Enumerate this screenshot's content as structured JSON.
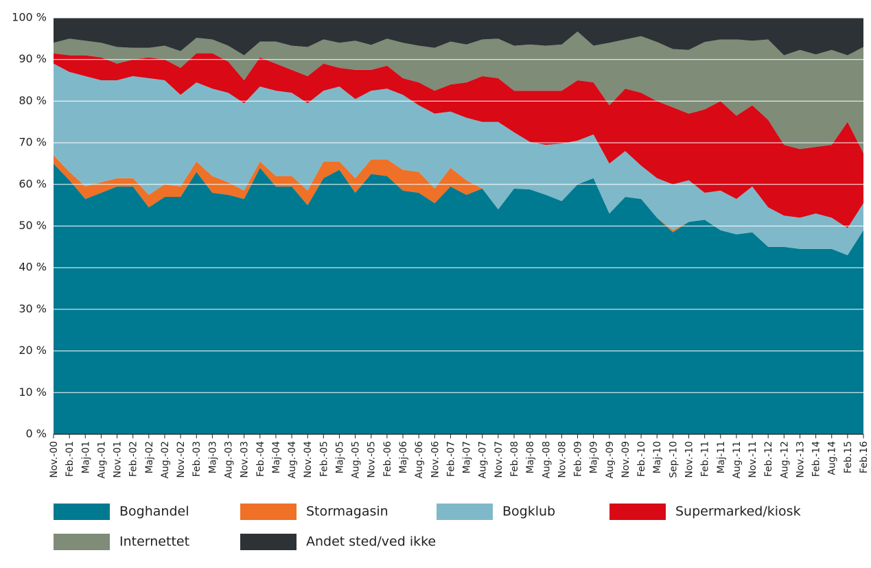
{
  "chart_data": {
    "type": "stacked-area",
    "categories": [
      "Nov.-00",
      "Feb.-01",
      "Maj-01",
      "Aug.-01",
      "Nov.-01",
      "Feb.-02",
      "Maj-02",
      "Aug.-02",
      "Nov.-02",
      "Feb.-03",
      "Maj-03",
      "Aug.-03",
      "Nov.-03",
      "Feb.-04",
      "Maj-04",
      "Aug.-04",
      "Nov.-04",
      "Feb.-05",
      "Maj-05",
      "Aug.-05",
      "Nov.-05",
      "Feb.-06",
      "Maj-06",
      "Aug.-06",
      "Nov.-06",
      "Feb.-07",
      "Maj-07",
      "Aug.-07",
      "Nov.-07",
      "Feb.-08",
      "Maj-08",
      "Aug.-08",
      "Nov.-08",
      "Feb.-09",
      "Maj-09",
      "Aug.-09",
      "Nov.-09",
      "Feb.-10",
      "Maj-10",
      "Sep.-10",
      "Nov.-10",
      "Feb.-11",
      "Maj-11",
      "Aug.-11",
      "Nov.-11",
      "Feb.-12",
      "Aug.-12",
      "Nov.-13",
      "Feb.-14",
      "Aug.14",
      "Feb.15",
      "Feb.16"
    ],
    "series": [
      {
        "name": "Boghandel",
        "color": "#007a91",
        "values": [
          65,
          61,
          56.5,
          58,
          59.5,
          59.5,
          54.5,
          57,
          57,
          63,
          58,
          57.5,
          56.5,
          64,
          59.5,
          59.5,
          55,
          61.5,
          63.5,
          58,
          62.5,
          62,
          58.5,
          58,
          55.5,
          59.5,
          57.5,
          59,
          54,
          59,
          58.8,
          57.5,
          56,
          60,
          61.5,
          53,
          57,
          56.5,
          52,
          48.5,
          51,
          51.5,
          49,
          48,
          48.5,
          45,
          45,
          44.5,
          44.5,
          44.5,
          43,
          49
        ]
      },
      {
        "name": "Stormagasin",
        "color": "#ee7127",
        "values": [
          2,
          2,
          3,
          2.5,
          2,
          2,
          3,
          3,
          2.5,
          2.5,
          4,
          3,
          2,
          1.5,
          2.5,
          2.5,
          3.5,
          4,
          2,
          3.5,
          3.5,
          4,
          5,
          5,
          3.5,
          4.5,
          3.5,
          0,
          0,
          0,
          0,
          0,
          0,
          0,
          0,
          0,
          0,
          0,
          0,
          0.5,
          0,
          0,
          0,
          0,
          0,
          0,
          0,
          0,
          0,
          0,
          0,
          0
        ]
      },
      {
        "name": "Bogklub",
        "color": "#7fb9c9",
        "values": [
          22,
          24,
          26.5,
          24.5,
          23.5,
          24.5,
          28,
          25,
          22,
          19,
          21,
          21.5,
          21,
          18,
          20.5,
          20,
          21,
          17,
          18,
          19,
          16.5,
          17,
          18,
          16,
          18,
          13.5,
          15,
          16,
          21,
          13.5,
          11.4,
          12,
          13.8,
          10.5,
          10.5,
          12,
          11,
          8,
          9.5,
          11,
          10,
          6.5,
          9.5,
          8.5,
          11,
          9.5,
          7.5,
          7.5,
          8.5,
          7.5,
          6.5,
          6.5
        ]
      },
      {
        "name": "Supermarked/kiosk",
        "color": "#d90916",
        "values": [
          2.5,
          4,
          5,
          5.5,
          4,
          4,
          5,
          5,
          6.5,
          7,
          8.5,
          7.5,
          5.5,
          7,
          6.5,
          5.5,
          6.5,
          6.5,
          4.5,
          7,
          5,
          5.5,
          4,
          5.5,
          5.5,
          6.5,
          8.5,
          11,
          10.5,
          10,
          12.3,
          13,
          12.7,
          14.5,
          12.5,
          14,
          15,
          17.5,
          18.5,
          18.5,
          16,
          20,
          21.5,
          20,
          19.5,
          21,
          17,
          16.5,
          16,
          17.5,
          25.5,
          12
        ]
      },
      {
        "name": "Internettet",
        "color": "#7e8c78",
        "values": [
          2.5,
          4,
          3.5,
          3.5,
          4,
          2.8,
          2.3,
          3.3,
          4,
          3.7,
          3.3,
          3.8,
          6,
          3.8,
          5.3,
          5.8,
          7,
          5.8,
          6,
          7,
          6,
          6.5,
          8.5,
          8.8,
          10.3,
          10.3,
          9.1,
          8.8,
          9.5,
          10.8,
          11.1,
          10.8,
          11.1,
          11.7,
          8.8,
          15,
          11.8,
          13.6,
          14.2,
          14,
          15.3,
          16.2,
          14.8,
          18.3,
          15.5,
          19.3,
          21.5,
          23.8,
          22.2,
          22.8,
          16,
          25.5
        ]
      },
      {
        "name": "Andet sted/ved ikke",
        "color": "#2d3236",
        "values": [
          6,
          5,
          5.5,
          6,
          7,
          7.2,
          7.2,
          6.7,
          8,
          4.8,
          5.2,
          6.7,
          9,
          5.7,
          5.7,
          6.7,
          7,
          5.2,
          6,
          5.5,
          6.5,
          5,
          6,
          6.7,
          7.2,
          5.7,
          6.4,
          5.2,
          5,
          6.7,
          6.4,
          6.7,
          6.4,
          3.3,
          6.7,
          6,
          5.2,
          4.4,
          5.8,
          7.5,
          7.7,
          5.8,
          5.2,
          5.2,
          5.5,
          5.2,
          9,
          7.7,
          8.8,
          7.7,
          9,
          7
        ]
      }
    ],
    "ylim": [
      0,
      100
    ],
    "yticks": [
      {
        "value": 0,
        "label": "0 %"
      },
      {
        "value": 10,
        "label": "10 %"
      },
      {
        "value": 20,
        "label": "20 %"
      },
      {
        "value": 30,
        "label": "30 %"
      },
      {
        "value": 40,
        "label": "40 %"
      },
      {
        "value": 50,
        "label": "50 %"
      },
      {
        "value": 60,
        "label": "60 %"
      },
      {
        "value": 70,
        "label": "70 %"
      },
      {
        "value": 80,
        "label": "80 %"
      },
      {
        "value": 90,
        "label": "90 %"
      },
      {
        "value": 100,
        "label": "100 %"
      }
    ],
    "grid": true
  }
}
